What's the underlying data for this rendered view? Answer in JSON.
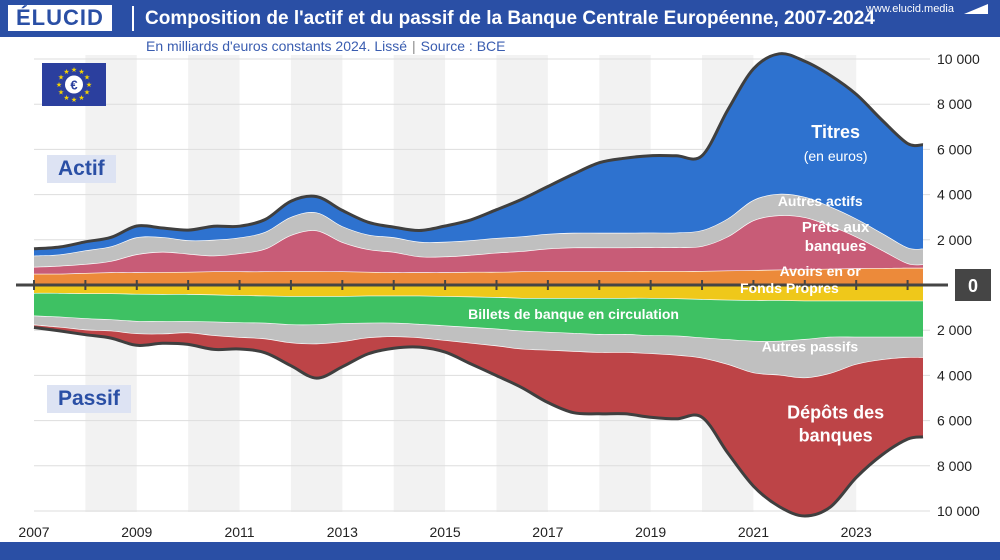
{
  "header": {
    "logo": "ÉLUCID",
    "title": "Composition de l'actif et du passif de la Banque Centrale Européenne, 2007-2024",
    "subtitle": "En milliards d'euros constants 2024. Lissé",
    "source": "Source : BCE"
  },
  "footer": {
    "url": "www.elucid.media"
  },
  "labels": {
    "actif": "Actif",
    "passif": "Passif",
    "zero": "0"
  },
  "colors": {
    "titres": "#2e72cf",
    "autres_actifs": "#c0c0c0",
    "prets": "#c85c77",
    "or": "#ec8a3a",
    "fonds_propres": "#efc81a",
    "billets": "#3ec163",
    "autres_passifs": "#c0c0c0",
    "depots": "#bd4447",
    "accent": "#2a4fa5",
    "outline": "#3f3f3f"
  },
  "chart_data": {
    "type": "area",
    "title": "Composition de l'actif et du passif de la Banque Centrale Européenne, 2007-2024",
    "subtitle": "En milliards d'euros constants 2024. Lissé",
    "xlabel": "",
    "ylabel": "",
    "xlim": [
      2007,
      2024.3
    ],
    "ylim": [
      -10000,
      10000
    ],
    "x_ticks": [
      "2007",
      "2009",
      "2011",
      "2013",
      "2015",
      "2017",
      "2019",
      "2021",
      "2023"
    ],
    "y_ticks_labels": [
      "10 000",
      "8 000",
      "6 000",
      "4 000",
      "2 000",
      "0",
      "2 000",
      "4 000",
      "6 000",
      "8 000",
      "10 000"
    ],
    "x": [
      2007,
      2007.5,
      2008,
      2008.5,
      2009,
      2009.5,
      2010,
      2010.5,
      2011,
      2011.5,
      2012,
      2012.5,
      2013,
      2013.5,
      2014,
      2014.5,
      2015,
      2015.5,
      2016,
      2016.5,
      2017,
      2017.5,
      2018,
      2018.5,
      2019,
      2019.5,
      2020,
      2020.5,
      2021,
      2021.5,
      2022,
      2022.5,
      2023,
      2023.5,
      2024,
      2024.3
    ],
    "asset_series": [
      {
        "name": "Avoirs en or",
        "values": [
          500,
          500,
          530,
          560,
          560,
          570,
          580,
          600,
          600,
          600,
          610,
          610,
          600,
          580,
          560,
          560,
          560,
          580,
          580,
          600,
          610,
          610,
          610,
          610,
          620,
          620,
          620,
          640,
          660,
          680,
          700,
          720,
          740,
          750,
          760,
          760
        ]
      },
      {
        "name": "Prêts aux banques",
        "values": [
          300,
          350,
          400,
          500,
          800,
          900,
          800,
          700,
          800,
          1000,
          1600,
          1800,
          1300,
          1000,
          900,
          700,
          700,
          750,
          850,
          900,
          1000,
          1050,
          1050,
          1050,
          1050,
          1050,
          1100,
          1500,
          2200,
          2400,
          2300,
          1900,
          1400,
          800,
          200,
          150
        ]
      },
      {
        "name": "Autres actifs",
        "values": [
          500,
          500,
          600,
          650,
          750,
          650,
          600,
          700,
          700,
          750,
          800,
          800,
          700,
          650,
          650,
          650,
          650,
          650,
          650,
          650,
          650,
          650,
          650,
          650,
          650,
          650,
          700,
          800,
          900,
          950,
          900,
          850,
          800,
          750,
          700,
          700
        ]
      },
      {
        "name": "Titres",
        "values": [
          300,
          330,
          380,
          400,
          500,
          400,
          450,
          600,
          500,
          550,
          700,
          700,
          700,
          550,
          450,
          500,
          700,
          900,
          1250,
          1650,
          2100,
          2600,
          3100,
          3300,
          3400,
          3400,
          3300,
          4800,
          5800,
          6200,
          6000,
          5800,
          5500,
          5000,
          4600,
          4600
        ]
      }
    ],
    "liability_series": [
      {
        "name": "Fonds Propres",
        "values": [
          380,
          380,
          400,
          400,
          420,
          430,
          430,
          450,
          480,
          500,
          520,
          520,
          520,
          500,
          500,
          500,
          520,
          540,
          560,
          600,
          600,
          600,
          600,
          600,
          600,
          620,
          650,
          680,
          700,
          700,
          720,
          720,
          720,
          720,
          720,
          720
        ]
      },
      {
        "name": "Billets de banque en circulation",
        "values": [
          1000,
          1050,
          1100,
          1150,
          1200,
          1200,
          1200,
          1200,
          1200,
          1200,
          1250,
          1250,
          1200,
          1200,
          1200,
          1250,
          1300,
          1350,
          1400,
          1450,
          1500,
          1550,
          1600,
          1600,
          1650,
          1650,
          1700,
          1750,
          1800,
          1800,
          1700,
          1600,
          1600,
          1600,
          1600,
          1600
        ]
      },
      {
        "name": "Autres passifs",
        "values": [
          400,
          450,
          500,
          500,
          550,
          550,
          500,
          600,
          650,
          700,
          800,
          850,
          800,
          650,
          600,
          600,
          650,
          700,
          750,
          800,
          800,
          800,
          800,
          800,
          800,
          850,
          900,
          1100,
          1400,
          1500,
          1700,
          1600,
          1200,
          1000,
          900,
          900
        ]
      },
      {
        "name": "Dépôts des banques",
        "values": [
          100,
          150,
          200,
          300,
          500,
          400,
          500,
          600,
          500,
          600,
          1000,
          1500,
          1100,
          700,
          500,
          400,
          500,
          900,
          1300,
          1700,
          2300,
          2700,
          2700,
          2700,
          2800,
          2800,
          2600,
          3900,
          5000,
          5800,
          6100,
          5900,
          5000,
          4200,
          3600,
          3500
        ]
      }
    ],
    "annotations": [
      {
        "text": "Titres",
        "sub": "(en euros)",
        "x": 2022.6,
        "y": 6500
      },
      {
        "text": "Autres actifs",
        "x": 2022.3,
        "y": 3500
      },
      {
        "text": "Prêts aux",
        "sub": "banques",
        "x": 2022.6,
        "y": 2350
      },
      {
        "text": "Avoirs en or",
        "x": 2022.3,
        "y": 400
      },
      {
        "text": "Fonds Propres",
        "x": 2021.7,
        "y": -350
      },
      {
        "text": "Billets de banque en circulation",
        "x": 2017.5,
        "y": -1500
      },
      {
        "text": "Autres passifs",
        "x": 2022.1,
        "y": -2950
      },
      {
        "text": "Dépôts des",
        "sub": "banques",
        "x": 2022.6,
        "y": -5900
      }
    ]
  }
}
